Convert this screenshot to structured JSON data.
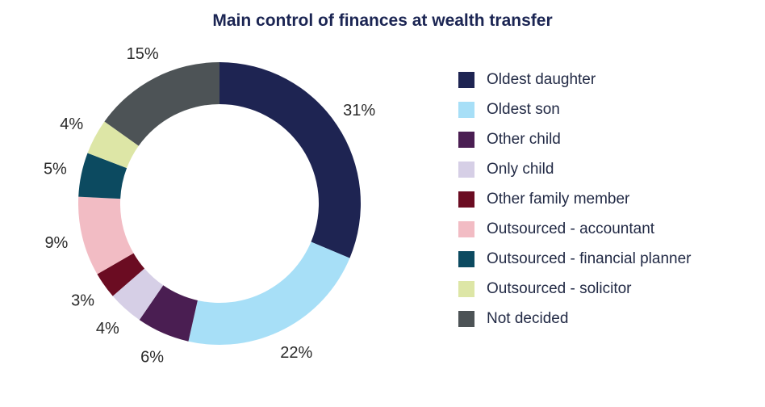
{
  "chart_data": {
    "type": "pie",
    "donut": true,
    "title": "Main control of finances at wealth transfer",
    "slices": [
      {
        "label": "Oldest daughter",
        "value": 31,
        "display": "31%",
        "color": "#1e2452"
      },
      {
        "label": "Oldest son",
        "value": 22,
        "display": "22%",
        "color": "#a7dff7"
      },
      {
        "label": "Other child",
        "value": 6,
        "display": "6%",
        "color": "#4a1e52"
      },
      {
        "label": "Only child",
        "value": 4,
        "display": "4%",
        "color": "#d6cfe6"
      },
      {
        "label": "Other family member",
        "value": 3,
        "display": "3%",
        "color": "#6b0c22"
      },
      {
        "label": "Outsourced - accountant",
        "value": 9,
        "display": "9%",
        "color": "#f2bcc4"
      },
      {
        "label": "Outsourced - financial planner",
        "value": 5,
        "display": "5%",
        "color": "#0c4a60"
      },
      {
        "label": "Outsourced - solicitor",
        "value": 4,
        "display": "4%",
        "color": "#dde6a6"
      },
      {
        "label": "Not decided",
        "value": 15,
        "display": "15%",
        "color": "#4d5356"
      }
    ],
    "legend_position": "right"
  }
}
